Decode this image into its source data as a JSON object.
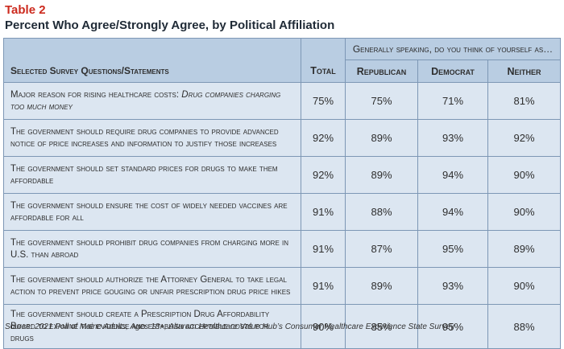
{
  "table_label": "Table 2",
  "title": "Percent Who Agree/Strongly Agree, by Political Affiliation",
  "header": {
    "question_col": "Selected Survey Questions/Statements",
    "total_col": "Total",
    "group_label": "Generally speaking, do you think of yourself as…",
    "columns": [
      "Republican",
      "Democrat",
      "Neither"
    ]
  },
  "rows": [
    {
      "q_prefix": "Major reason for rising healthcare costs: ",
      "q_emph": "Drug companies charging too much money",
      "total": "75%",
      "republican": "75%",
      "democrat": "71%",
      "neither": "81%"
    },
    {
      "q_prefix": "The government should require drug companies to provide advanced notice of price increases and information to justify those increases",
      "q_emph": "",
      "total": "92%",
      "republican": "89%",
      "democrat": "93%",
      "neither": "92%"
    },
    {
      "q_prefix": "The government should set standard prices for drugs to make them affordable",
      "q_emph": "",
      "total": "92%",
      "republican": "89%",
      "democrat": "94%",
      "neither": "90%"
    },
    {
      "q_prefix": "The government should ensure the cost of widely needed vaccines are affordable for all",
      "q_emph": "",
      "total": "91%",
      "republican": "88%",
      "democrat": "94%",
      "neither": "90%"
    },
    {
      "q_prefix": "The government should prohibit drug companies from charging more in U.S. than abroad",
      "q_emph": "",
      "total": "91%",
      "republican": "87%",
      "democrat": "95%",
      "neither": "89%"
    },
    {
      "q_prefix": "The government should authorize the Attorney General to take legal action to prevent price gouging or unfair prescription drug price hikes",
      "q_emph": "",
      "total": "91%",
      "republican": "89%",
      "democrat": "93%",
      "neither": "90%"
    },
    {
      "q_prefix": "The government should create a Prescription Drug Affordability Board to examine the evidence and establish acceptable costs for drugs",
      "q_emph": "",
      "total": "90%",
      "republican": "85%",
      "democrat": "95%",
      "neither": "88%"
    }
  ],
  "source": "Source: 2021 Poll of Maine Adults, Ages 18+, Altarum Healthcare Value Hub’s Consumer Healthcare Experience State Survey"
}
